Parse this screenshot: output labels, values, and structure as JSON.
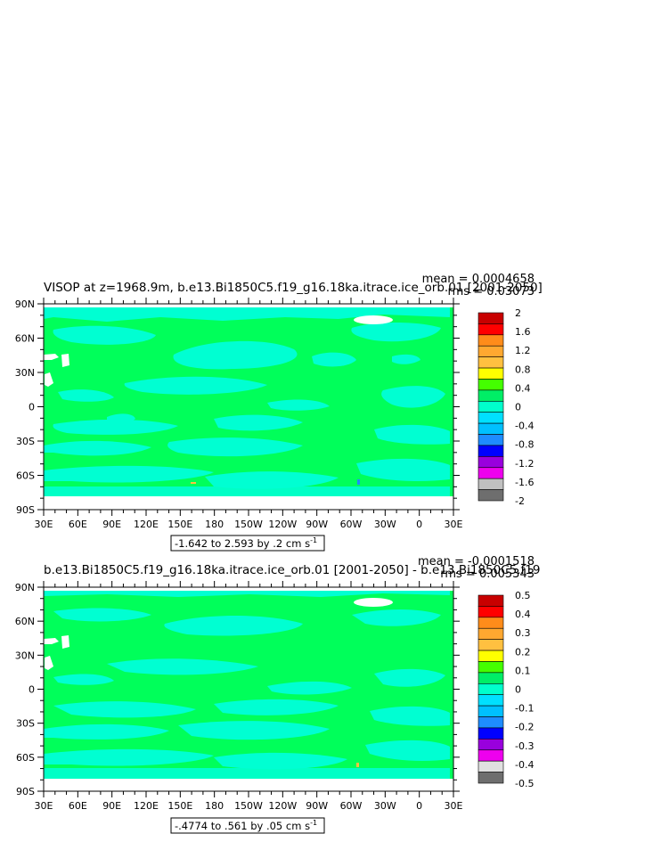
{
  "chart_data": [
    {
      "type": "heatmap",
      "title": "VISOP at z=1968.9m, b.e13.Bi1850C5.f19_g16.18ka.itrace.ice_orb.01 [2001-2050]",
      "stats": {
        "mean": "mean = 0.0004658",
        "rms": "rms = 0.03073"
      },
      "x_ticks": [
        "30E",
        "60E",
        "90E",
        "120E",
        "150E",
        "180",
        "150W",
        "120W",
        "90W",
        "60W",
        "30W",
        "0",
        "30E"
      ],
      "y_ticks": [
        "90N",
        "60N",
        "30N",
        "0",
        "30S",
        "60S",
        "90S"
      ],
      "xlim": [
        30,
        390
      ],
      "ylim": [
        -90,
        90
      ],
      "range_label": "-1.642 to 2.593 by .2 cm s",
      "range_unit_sup": "-1",
      "colorbar": {
        "labels": [
          "2",
          "1.6",
          "1.2",
          "0.8",
          "0.4",
          "0",
          "-0.4",
          "-0.8",
          "-1.2",
          "-1.6",
          "-2"
        ],
        "colors": [
          "#c80000",
          "#ff0000",
          "#ff8c1a",
          "#ffa830",
          "#ffc040",
          "#ffff00",
          "#44ff00",
          "#00ee66",
          "#00ffcc",
          "#00e0ff",
          "#00c0ff",
          "#1e8cff",
          "#0000ff",
          "#9900dd",
          "#ee00ee",
          "#c0c0c0",
          "#6e6e6e"
        ]
      },
      "colors": {
        "ocean_main": "#00ff5a",
        "ocean_band": "#00ffd2",
        "negative_spot": "#1e8cff",
        "positive_spot": "#ffc040",
        "land": "#ffffff"
      }
    },
    {
      "type": "heatmap",
      "title": "b.e13.Bi1850C5.f19_g16.18ka.itrace.ice_orb.01 [2001-2050] - b.e13.Bi1850C5.f19",
      "stats": {
        "mean": "mean = -0.0001518",
        "rms": "rms = 0.005343"
      },
      "x_ticks": [
        "30E",
        "60E",
        "90E",
        "120E",
        "150E",
        "180",
        "150W",
        "120W",
        "90W",
        "60W",
        "30W",
        "0",
        "30E"
      ],
      "y_ticks": [
        "90N",
        "60N",
        "30N",
        "0",
        "30S",
        "60S",
        "90S"
      ],
      "xlim": [
        30,
        390
      ],
      "ylim": [
        -90,
        90
      ],
      "range_label": "-.4774 to .561 by .05 cm s",
      "range_unit_sup": "-1",
      "colorbar": {
        "labels": [
          "0.5",
          "0.4",
          "0.3",
          "0.2",
          "0.1",
          "0",
          "-0.1",
          "-0.2",
          "-0.3",
          "-0.4",
          "-0.5"
        ],
        "colors": [
          "#c80000",
          "#ff0000",
          "#ff8c1a",
          "#ffa830",
          "#ffc040",
          "#ffff00",
          "#44ff00",
          "#00ee66",
          "#00ffcc",
          "#00e0ff",
          "#00c0ff",
          "#1e8cff",
          "#0000ff",
          "#9900dd",
          "#ee00ee",
          "#e0e0e0",
          "#6e6e6e"
        ]
      },
      "colors": {
        "ocean_main": "#00ff5a",
        "ocean_band": "#00ffd2",
        "negative_spot": "#1e8cff",
        "positive_spot": "#ffc040",
        "land": "#ffffff"
      }
    }
  ]
}
